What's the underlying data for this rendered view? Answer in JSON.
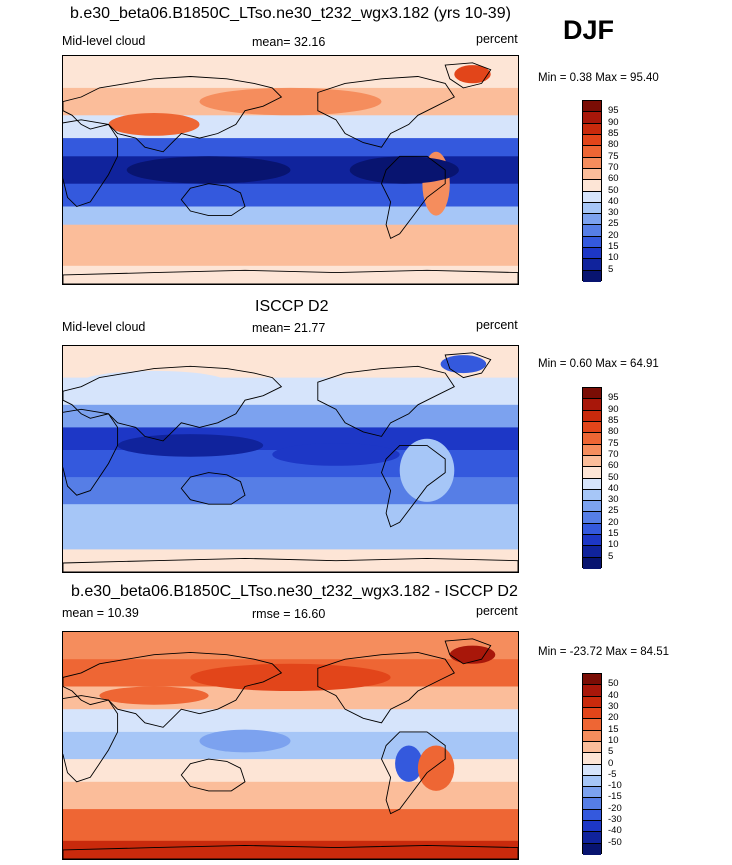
{
  "panels": [
    {
      "title": "b.e30_beta06.B1850C_LTso.ne30_t232_wgx3.182 (yrs 10-39)",
      "left_label": "Mid-level cloud",
      "center_label": "mean=  32.16",
      "right_label": "percent",
      "minmax": "Min =   0.38 Max =  95.40"
    },
    {
      "title": "ISCCP D2",
      "left_label": "Mid-level cloud",
      "center_label": "mean=  21.77",
      "right_label": "percent",
      "minmax": "Min =   0.60 Max =  64.91"
    },
    {
      "title": "b.e30_beta06.B1850C_LTso.ne30_t232_wgx3.182 - ISCCP D2",
      "left_label": "mean =  10.39",
      "center_label": "rmse =  16.60",
      "right_label": "percent",
      "minmax": "Min = -23.72 Max =  84.51"
    }
  ],
  "season": "DJF",
  "colorbars": {
    "absolute": {
      "labels": [
        "95",
        "90",
        "85",
        "80",
        "75",
        "70",
        "60",
        "50",
        "40",
        "30",
        "25",
        "20",
        "15",
        "10",
        "5"
      ],
      "colors": [
        "#7a0d05",
        "#a8170a",
        "#c92a0c",
        "#e2451a",
        "#ee6634",
        "#f58d5d",
        "#fbbd9a",
        "#fde5d6",
        "#d6e4fb",
        "#a6c6f7",
        "#7ca2ef",
        "#567ee6",
        "#3459dd",
        "#1d37c6",
        "#10239c",
        "#081470"
      ]
    },
    "difference": {
      "labels": [
        "50",
        "40",
        "30",
        "20",
        "15",
        "10",
        "5",
        "0",
        "-5",
        "-10",
        "-15",
        "-20",
        "-30",
        "-40",
        "-50"
      ],
      "colors": [
        "#7a0d05",
        "#a8170a",
        "#c92a0c",
        "#e2451a",
        "#ee6634",
        "#f58d5d",
        "#fbbd9a",
        "#fde5d6",
        "#d6e4fb",
        "#a6c6f7",
        "#7ca2ef",
        "#567ee6",
        "#3459dd",
        "#1d37c6",
        "#10239c",
        "#081470"
      ]
    }
  },
  "chart_data": [
    {
      "type": "heatmap",
      "title": "b.e30_beta06.B1850C_LTso.ne30_t232_wgx3.182 (yrs 10-39)",
      "subtitle": "Mid-level cloud",
      "units": "percent",
      "season": "DJF",
      "mean": 32.16,
      "min": 0.38,
      "max": 95.4,
      "contour_levels": [
        5,
        10,
        15,
        20,
        25,
        30,
        40,
        50,
        60,
        70,
        75,
        80,
        85,
        90,
        95
      ],
      "lat_band_values": [
        {
          "band": "north polar",
          "value": 60
        },
        {
          "band": "northern midlatitude storm track",
          "value": 62
        },
        {
          "band": "subtropics",
          "value": 20
        },
        {
          "band": "tropics",
          "value": 8
        },
        {
          "band": "southern subtropics",
          "value": 18
        },
        {
          "band": "southern midlatitudes",
          "value": 55
        },
        {
          "band": "south polar",
          "value": 60
        }
      ]
    },
    {
      "type": "heatmap",
      "title": "ISCCP D2",
      "subtitle": "Mid-level cloud",
      "units": "percent",
      "season": "DJF",
      "mean": 21.77,
      "min": 0.6,
      "max": 64.91,
      "contour_levels": [
        5,
        10,
        15,
        20,
        25,
        30,
        40,
        50,
        60,
        70,
        75,
        80,
        85,
        90,
        95
      ],
      "lat_band_values": [
        {
          "band": "north polar",
          "value": 40
        },
        {
          "band": "northern midlatitude storm track",
          "value": 35
        },
        {
          "band": "subtropics",
          "value": 12
        },
        {
          "band": "tropics",
          "value": 12
        },
        {
          "band": "southern subtropics",
          "value": 15
        },
        {
          "band": "southern midlatitudes",
          "value": 30
        },
        {
          "band": "south polar",
          "value": 35
        }
      ]
    },
    {
      "type": "heatmap",
      "title": "b.e30_beta06.B1850C_LTso.ne30_t232_wgx3.182 - ISCCP D2",
      "units": "percent",
      "season": "DJF",
      "mean": 10.39,
      "rmse": 16.6,
      "min": -23.72,
      "max": 84.51,
      "contour_levels": [
        -50,
        -40,
        -30,
        -20,
        -15,
        -10,
        -5,
        0,
        5,
        10,
        15,
        20,
        30,
        40,
        50
      ],
      "lat_band_values": [
        {
          "band": "north polar",
          "value": 20
        },
        {
          "band": "northern midlatitude storm track",
          "value": 27
        },
        {
          "band": "subtropics",
          "value": 8
        },
        {
          "band": "tropics",
          "value": -3
        },
        {
          "band": "southern subtropics",
          "value": 3
        },
        {
          "band": "southern midlatitudes",
          "value": 25
        },
        {
          "band": "south polar",
          "value": 25
        }
      ]
    }
  ]
}
